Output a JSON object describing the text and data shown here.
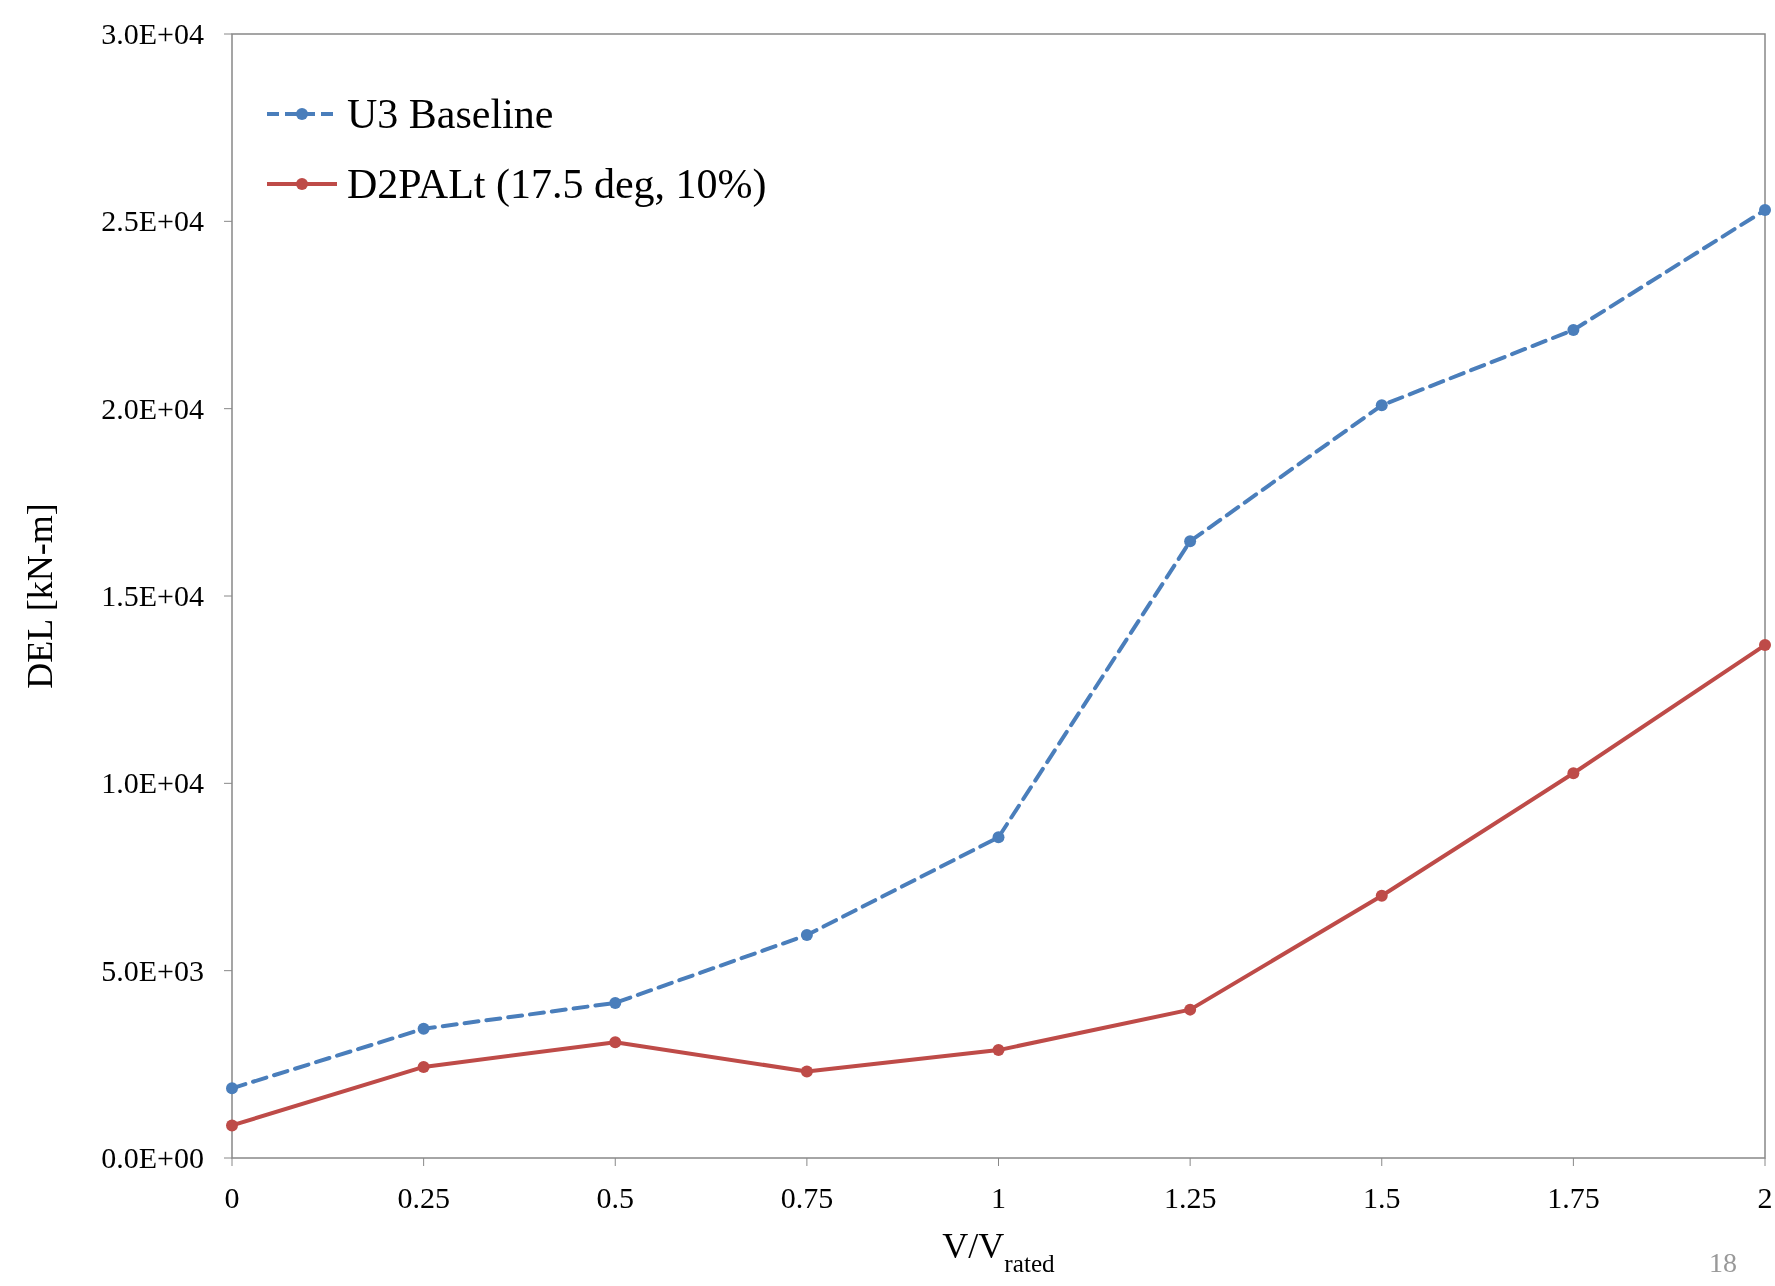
{
  "chart_data": {
    "type": "line",
    "xlabel": "V/V$_{rated}$",
    "ylabel": "DEL [kN-m]",
    "x": [
      0,
      0.25,
      0.5,
      0.75,
      1,
      1.25,
      1.5,
      1.75,
      2
    ],
    "series": [
      {
        "name": "U3 Baseline",
        "color": "#4a7ebb",
        "line_style": "dashed",
        "values": [
          1860,
          3450,
          4140,
          5950,
          8560,
          16460,
          20090,
          22100,
          25300
        ]
      },
      {
        "name": "D2PALt (17.5 deg, 10%)",
        "color": "#be4b48",
        "line_style": "solid",
        "values": [
          870,
          2430,
          3090,
          2310,
          2880,
          3960,
          7000,
          10270,
          13690
        ]
      }
    ],
    "xlim": [
      0,
      2
    ],
    "xticks": [
      0,
      0.25,
      0.5,
      0.75,
      1,
      1.25,
      1.5,
      1.75,
      2
    ],
    "ylim": [
      0,
      30000
    ],
    "yticks": [
      {
        "value": 0,
        "label": "0.0E+00"
      },
      {
        "value": 5000,
        "label": "5.0E+03"
      },
      {
        "value": 10000,
        "label": "1.0E+04"
      },
      {
        "value": 15000,
        "label": "1.5E+04"
      },
      {
        "value": 20000,
        "label": "2.0E+04"
      },
      {
        "value": 25000,
        "label": "2.5E+04"
      },
      {
        "value": 30000,
        "label": "3.0E+04"
      }
    ],
    "grid": false,
    "legend": "top left",
    "marker": "circle",
    "annotations": [
      "18"
    ]
  }
}
